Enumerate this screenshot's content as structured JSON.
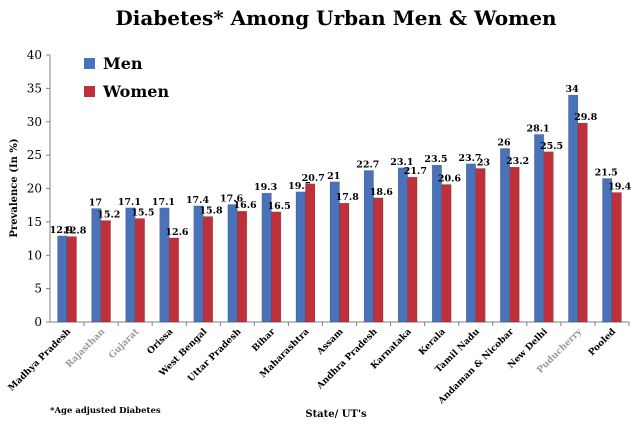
{
  "chart_data": {
    "type": "bar",
    "title": "Diabetes* Among Urban Men & Women",
    "xlabel": "State/ UT's",
    "ylabel": "Prevalence (In %)",
    "footnote": "*Age adjusted Diabetes",
    "ylim": [
      0,
      40
    ],
    "yticks": [
      0,
      5,
      10,
      15,
      20,
      25,
      30,
      35,
      40
    ],
    "grid": false,
    "legend_position": "top-left",
    "categories": [
      "Madhya Pradesh",
      "Rajasthan",
      "Gujarat",
      "Orissa",
      "West Bengal",
      "Uttar Pradesh",
      "Bihar",
      "Maharashtra",
      "Assam",
      "Andhra Pradesh",
      "Karnataka",
      "Kerala",
      "Tamil Nadu",
      "Andaman & Nicobar",
      "New Delhi",
      "Puducherry",
      "Pooled"
    ],
    "faded_categories": [
      "Rajasthan",
      "Gujarat",
      "Puducherry"
    ],
    "series": [
      {
        "name": "Men",
        "color": "#4a72b8",
        "values": [
          12.9,
          17,
          17.1,
          17.1,
          17.4,
          17.6,
          19.3,
          19.5,
          21,
          22.7,
          23.1,
          23.5,
          23.7,
          26,
          28.1,
          34,
          21.5
        ]
      },
      {
        "name": "Women",
        "color": "#c0303a",
        "values": [
          12.8,
          15.2,
          15.5,
          12.6,
          15.8,
          16.6,
          16.5,
          20.7,
          17.8,
          18.6,
          21.7,
          20.6,
          23,
          23.2,
          25.5,
          29.8,
          19.4
        ]
      }
    ]
  }
}
